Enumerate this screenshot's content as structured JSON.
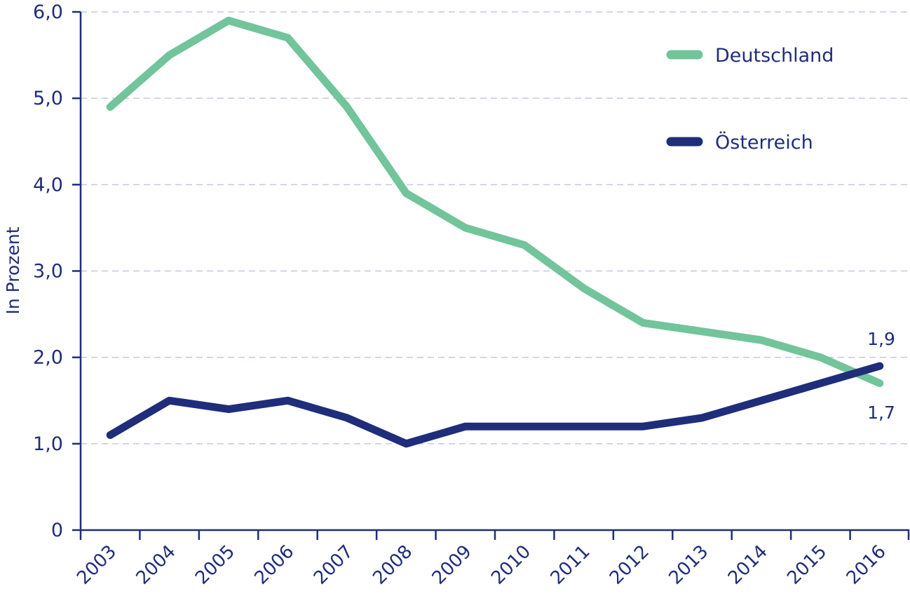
{
  "chart_data": {
    "type": "line",
    "categories": [
      "2003",
      "2004",
      "2005",
      "2006",
      "2007",
      "2008",
      "2009",
      "2010",
      "2011",
      "2012",
      "2013",
      "2014",
      "2015",
      "2016"
    ],
    "series": [
      {
        "name": "Deutschland",
        "color": "#72c49a",
        "values": [
          4.9,
          5.5,
          5.9,
          5.7,
          4.9,
          3.9,
          3.5,
          3.3,
          2.8,
          2.4,
          2.3,
          2.2,
          2.0,
          1.7
        ]
      },
      {
        "name": "Österreich",
        "color": "#1f2d7a",
        "values": [
          1.1,
          1.5,
          1.4,
          1.5,
          1.3,
          1.0,
          1.2,
          1.2,
          1.2,
          1.2,
          1.3,
          1.5,
          1.7,
          1.9
        ]
      }
    ],
    "ylabel": "In Prozent",
    "ylim": [
      0,
      6
    ],
    "yticks": [
      0,
      1,
      2,
      3,
      4,
      5,
      6
    ],
    "ytick_labels": [
      "0",
      "1,0",
      "2,0",
      "3,0",
      "4,0",
      "5,0",
      "6,0"
    ],
    "grid": "horizontal dashed",
    "legend": "top-right",
    "end_labels": [
      "1,9",
      "1,7"
    ],
    "axis_color": "#1f2d7a",
    "grid_color": "#c5c8e0"
  }
}
